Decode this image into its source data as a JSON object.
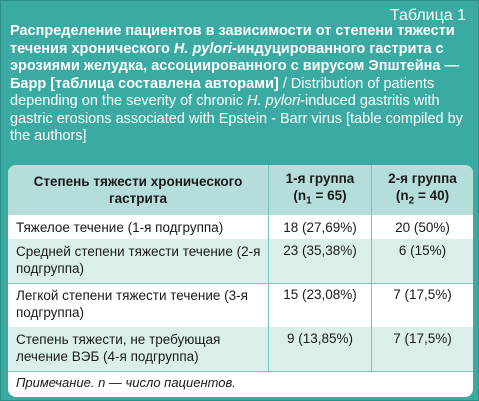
{
  "table_number": "Таблица 1",
  "title": {
    "ru_1": "Распределение пациентов в зависимости от степени тяжести течения хронического ",
    "ru_species": "H. pylori",
    "ru_2": "-индуцированного гастрита с эрозиями желудка, ассоциированного с вирусом Эпштейна — Барр [таблица составлена авторами]",
    "en_1": " / Distribution of patients depending on the severity of chronic ",
    "en_species": "H. pylori",
    "en_2": "-induced gastritis with gastric erosions associated with Epstein - Barr virus [table compiled by the authors]"
  },
  "table": {
    "header": {
      "col1": "Степень тяжести хронического гастрита",
      "col2_line1": "1-я группа",
      "col2_n_pre": "(n",
      "col2_n_sub": "1",
      "col2_n_post": " = 65)",
      "col3_line1": "2-я группа",
      "col3_n_pre": "(n",
      "col3_n_sub": "2",
      "col3_n_post": " = 40)"
    },
    "rows": [
      {
        "label": "Тяжелое течение (1-я подгруппа)",
        "g1": "18 (27,69%)",
        "g2": "20 (50%)"
      },
      {
        "label": "Средней степени тяжести течение (2-я подгруппа)",
        "g1": "23 (35,38%)",
        "g2": "6 (15%)"
      },
      {
        "label": "Легкой степени тяжести течение (3-я подгруппа)",
        "g1": "15 (23,08%)",
        "g2": "7 (17,5%)"
      },
      {
        "label": "Степень тяжести, не требующая лечение ВЭБ (4-я подгруппа)",
        "g1": "9 (13,85%)",
        "g2": "7 (17,5%)"
      }
    ],
    "note": "Примечание. n — число пациентов."
  },
  "colors": {
    "panel": "#3aaaa3",
    "header_row": "#b5dedb",
    "band_row": "#daefec",
    "divider": "#7bc4be"
  }
}
